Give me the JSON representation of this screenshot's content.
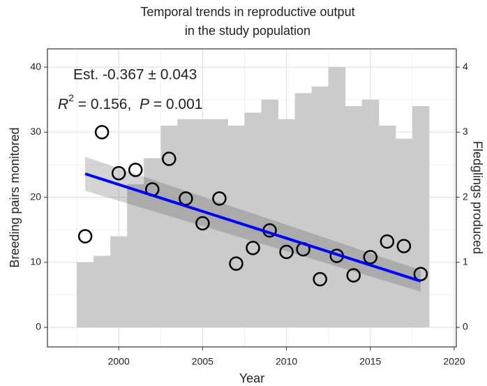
{
  "chart_data": {
    "type": "combo",
    "title": [
      "Temporal trends in reproductive output",
      "in the study population"
    ],
    "x_label": "Year",
    "y_label": "Breeding pairs monitored",
    "y2_label": "Fledglings produced",
    "annotation_est": "Est. -0.367 ± 0.043",
    "annotation_r2": {
      "r": "R",
      "sup": "2",
      "r_value": " = 0.156,  ",
      "p": "P",
      "p_value": " = 0.001"
    },
    "x": [
      1998,
      1999,
      2000,
      2001,
      2002,
      2003,
      2004,
      2005,
      2006,
      2007,
      2008,
      2009,
      2010,
      2011,
      2012,
      2013,
      2014,
      2015,
      2016,
      2017,
      2018
    ],
    "series": [
      {
        "name": "Breeding pairs monitored",
        "kind": "bar",
        "color": "#cbcbcb",
        "values": [
          10,
          11,
          14,
          22,
          26,
          31,
          32,
          32,
          32,
          31,
          33,
          35,
          32,
          36,
          37,
          40,
          34,
          35,
          31,
          29,
          34
        ]
      },
      {
        "name": "Fledglings produced",
        "kind": "point",
        "axis": "y2",
        "color": "#000000",
        "values": [
          1.4,
          3.0,
          2.37,
          2.42,
          2.12,
          2.59,
          1.98,
          1.6,
          1.98,
          0.98,
          1.22,
          1.49,
          1.16,
          1.2,
          0.74,
          1.1,
          0.8,
          1.08,
          1.32,
          1.25,
          0.82
        ]
      }
    ],
    "trend": {
      "axis": "y2",
      "color": "#0000ff",
      "x": [
        1998,
        2018
      ],
      "values": [
        2.36,
        0.71
      ],
      "lower": [
        2.1,
        0.55
      ],
      "upper": [
        2.62,
        0.88
      ]
    },
    "xlim": [
      1995.75,
      2020.125
    ],
    "xticks": [
      2000,
      2005,
      2010,
      2015,
      2020
    ],
    "xminor": [
      1997.5,
      2002.5,
      2007.5,
      2012.5,
      2017.5
    ],
    "ylim": [
      -3,
      42.8
    ],
    "yticks": [
      0,
      10,
      20,
      30,
      40
    ],
    "yminor": [
      5,
      15,
      25,
      35
    ],
    "y2lim": [
      -0.3,
      4.28
    ],
    "y2ticks": [
      0,
      1,
      2,
      3,
      4
    ],
    "grid": true
  }
}
